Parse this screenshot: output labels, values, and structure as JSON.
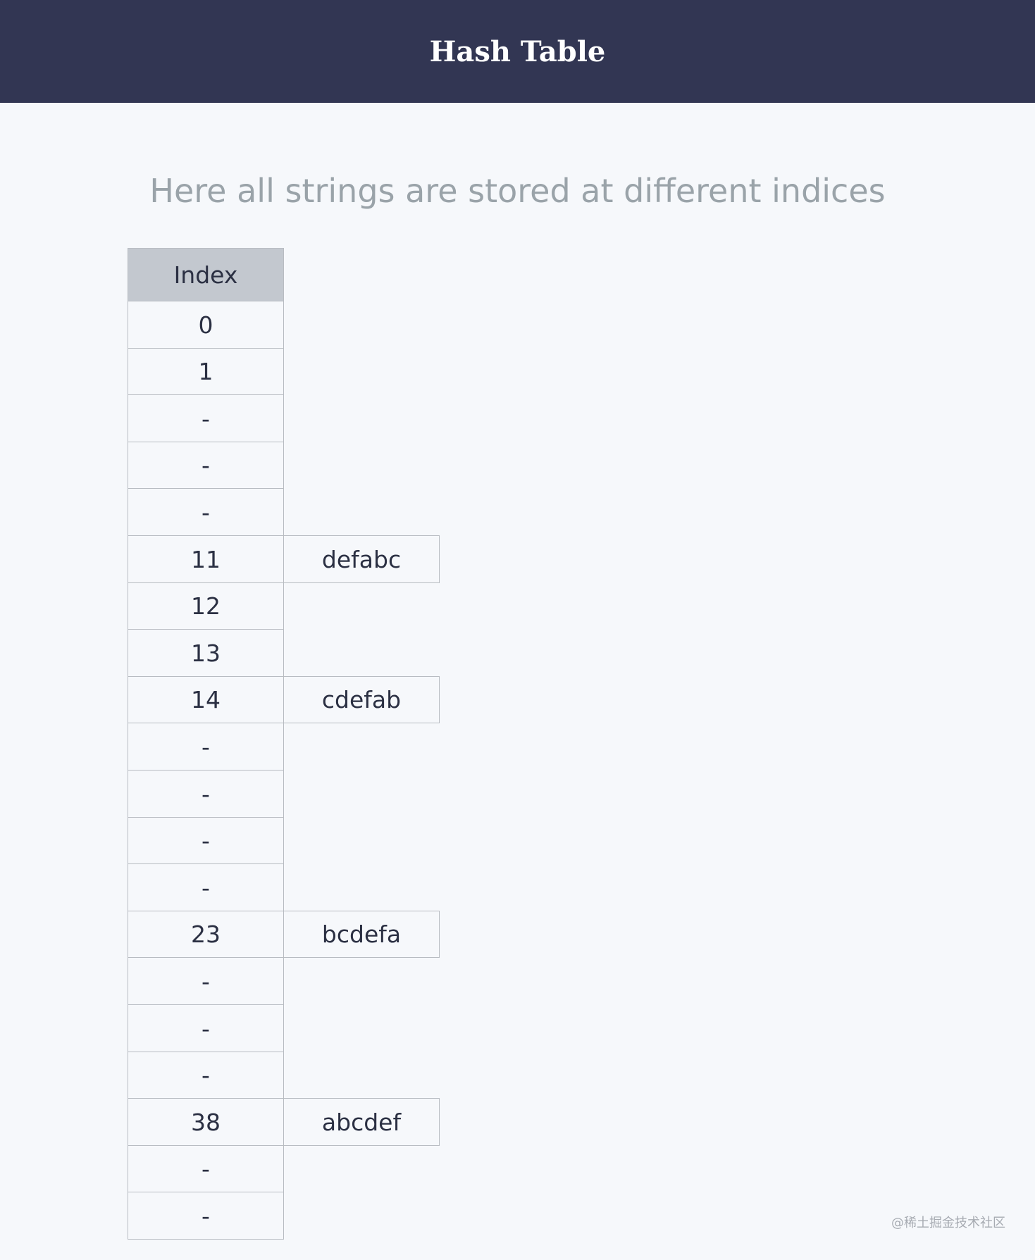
{
  "header": {
    "title": "Hash Table"
  },
  "subtitle": "Here all strings are stored at different indices",
  "table": {
    "column_header": "Index",
    "rows": [
      {
        "index": "0",
        "value": null
      },
      {
        "index": "1",
        "value": null
      },
      {
        "index": "-",
        "value": null
      },
      {
        "index": "-",
        "value": null
      },
      {
        "index": "-",
        "value": null
      },
      {
        "index": "11",
        "value": "defabc"
      },
      {
        "index": "12",
        "value": null
      },
      {
        "index": "13",
        "value": null
      },
      {
        "index": "14",
        "value": "cdefab"
      },
      {
        "index": "-",
        "value": null
      },
      {
        "index": "-",
        "value": null
      },
      {
        "index": "-",
        "value": null
      },
      {
        "index": "-",
        "value": null
      },
      {
        "index": "23",
        "value": "bcdefa"
      },
      {
        "index": "-",
        "value": null
      },
      {
        "index": "-",
        "value": null
      },
      {
        "index": "-",
        "value": null
      },
      {
        "index": "38",
        "value": "abcdef"
      },
      {
        "index": "-",
        "value": null
      },
      {
        "index": "-",
        "value": null
      }
    ]
  },
  "watermark": "@稀土掘金技术社区",
  "colors": {
    "header_bg": "#323653",
    "index_header_bg": "#c3c8cf",
    "page_bg": "#f6f8fb"
  }
}
